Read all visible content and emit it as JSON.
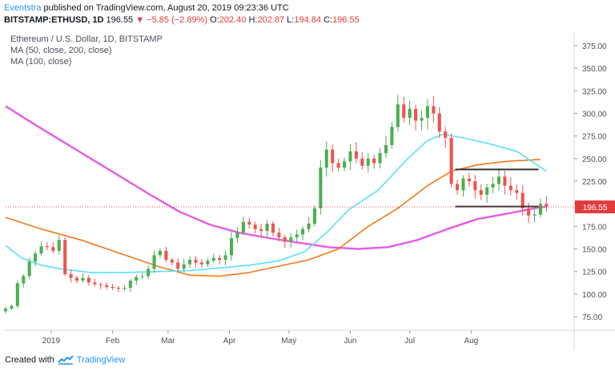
{
  "header": {
    "author": "Eventstra",
    "published": " published on TradingView.com, August 20, 2019 09:23:36 UTC",
    "symbol": "BITSTAMP:ETHUSD, 1D",
    "last": "196.55",
    "change": "▼ −5.85 (−2.89%)",
    "o_label": "O:",
    "o_value": "202.40",
    "h_label": "H:",
    "h_value": "202.87",
    "l_label": "L:",
    "l_value": "194.84",
    "c_label": "C:",
    "c_value": "196.55"
  },
  "footer": {
    "created_with": "Created with",
    "brand": "TradingView",
    "logo_icon": "tradingview-logo-icon"
  },
  "chart_data": {
    "type": "candlestick",
    "title": "Ethereum / U.S. Dollar, 1D, BITSTAMP",
    "legend": [
      "MA (50, close, 200, close)",
      "MA (100, close)"
    ],
    "y_ticks": [
      75,
      100,
      125,
      150,
      175,
      200,
      225,
      250,
      275,
      300,
      325,
      350,
      375
    ],
    "y_tick_labels": [
      "75.00",
      "100.00",
      "125.00",
      "150.00",
      "175.00",
      "200.00",
      "225.00",
      "250.00",
      "275.00",
      "300.00",
      "325.00",
      "350.00",
      "375.00"
    ],
    "ylim": [
      60,
      390
    ],
    "x_labels": [
      "2019",
      "Feb",
      "Mar",
      "Apr",
      "May",
      "Jun",
      "Jul",
      "Aug"
    ],
    "x_label_days": [
      0,
      31,
      59,
      90,
      120,
      151,
      181,
      212
    ],
    "xlim": [
      -23,
      264
    ],
    "last_price": 196.55,
    "last_price_label": "196.55",
    "price_color": "#e03c3c",
    "candles": [
      [
        -23,
        84
      ],
      [
        -20,
        87
      ],
      [
        -17,
        112
      ],
      [
        -14,
        120
      ],
      [
        -11,
        136
      ],
      [
        -8,
        145
      ],
      [
        -5,
        153
      ],
      [
        -2,
        152
      ],
      [
        1,
        148
      ],
      [
        4,
        160
      ],
      [
        7,
        122
      ],
      [
        10,
        118
      ],
      [
        13,
        115
      ],
      [
        16,
        118
      ],
      [
        19,
        113
      ],
      [
        22,
        111
      ],
      [
        25,
        110
      ],
      [
        28,
        108
      ],
      [
        31,
        107
      ],
      [
        34,
        106
      ],
      [
        37,
        107
      ],
      [
        40,
        115
      ],
      [
        43,
        119
      ],
      [
        46,
        120
      ],
      [
        49,
        128
      ],
      [
        52,
        143
      ],
      [
        55,
        148
      ],
      [
        58,
        138
      ],
      [
        61,
        135
      ],
      [
        64,
        128
      ],
      [
        67,
        133
      ],
      [
        70,
        138
      ],
      [
        73,
        135
      ],
      [
        76,
        133
      ],
      [
        79,
        137
      ],
      [
        82,
        140
      ],
      [
        85,
        138
      ],
      [
        88,
        143
      ],
      [
        91,
        162
      ],
      [
        94,
        168
      ],
      [
        97,
        180
      ],
      [
        100,
        177
      ],
      [
        103,
        172
      ],
      [
        106,
        170
      ],
      [
        109,
        178
      ],
      [
        112,
        168
      ],
      [
        115,
        163
      ],
      [
        118,
        158
      ],
      [
        121,
        163
      ],
      [
        124,
        166
      ],
      [
        127,
        172
      ],
      [
        130,
        178
      ],
      [
        133,
        195
      ],
      [
        136,
        240
      ],
      [
        139,
        260
      ],
      [
        142,
        245
      ],
      [
        145,
        240
      ],
      [
        148,
        247
      ],
      [
        151,
        258
      ],
      [
        154,
        250
      ],
      [
        157,
        242
      ],
      [
        160,
        250
      ],
      [
        163,
        245
      ],
      [
        166,
        256
      ],
      [
        169,
        265
      ],
      [
        172,
        285
      ],
      [
        175,
        310
      ],
      [
        178,
        295
      ],
      [
        181,
        305
      ],
      [
        184,
        292
      ],
      [
        187,
        295
      ],
      [
        190,
        308
      ],
      [
        193,
        300
      ],
      [
        196,
        280
      ],
      [
        199,
        273
      ],
      [
        202,
        222
      ],
      [
        205,
        215
      ],
      [
        208,
        228
      ],
      [
        211,
        225
      ],
      [
        214,
        215
      ],
      [
        217,
        210
      ],
      [
        220,
        218
      ],
      [
        223,
        222
      ],
      [
        226,
        230
      ],
      [
        229,
        220
      ],
      [
        232,
        215
      ],
      [
        235,
        212
      ],
      [
        238,
        195
      ],
      [
        241,
        187
      ],
      [
        244,
        188
      ],
      [
        247,
        200
      ],
      [
        250,
        197
      ]
    ],
    "candle_colors": {
      "up": "#4caf50",
      "down": "#ef5350"
    },
    "ma_cyan": {
      "name": "MA 50",
      "color": "#5ce0f7",
      "points": [
        [
          -23,
          154
        ],
        [
          -15,
          140
        ],
        [
          -5,
          132
        ],
        [
          5,
          128
        ],
        [
          20,
          124
        ],
        [
          35,
          124
        ],
        [
          55,
          125
        ],
        [
          70,
          126
        ],
        [
          85,
          129
        ],
        [
          100,
          132
        ],
        [
          115,
          137
        ],
        [
          128,
          147
        ],
        [
          140,
          170
        ],
        [
          150,
          193
        ],
        [
          165,
          215
        ],
        [
          180,
          250
        ],
        [
          190,
          270
        ],
        [
          198,
          277
        ],
        [
          210,
          272
        ],
        [
          222,
          266
        ],
        [
          235,
          258
        ],
        [
          250,
          236
        ]
      ]
    },
    "ma_orange": {
      "name": "MA 100",
      "color": "#f07a1e",
      "points": [
        [
          -23,
          185
        ],
        [
          -5,
          172
        ],
        [
          15,
          160
        ],
        [
          35,
          145
        ],
        [
          55,
          130
        ],
        [
          70,
          121
        ],
        [
          85,
          120
        ],
        [
          100,
          124
        ],
        [
          115,
          131
        ],
        [
          130,
          138
        ],
        [
          145,
          150
        ],
        [
          160,
          175
        ],
        [
          175,
          195
        ],
        [
          190,
          220
        ],
        [
          202,
          236
        ],
        [
          215,
          243
        ],
        [
          230,
          247
        ],
        [
          247,
          249
        ]
      ]
    },
    "ma_magenta": {
      "name": "MA 200",
      "color": "#e75ce6",
      "points": [
        [
          -23,
          308
        ],
        [
          -10,
          290
        ],
        [
          5,
          270
        ],
        [
          20,
          250
        ],
        [
          35,
          230
        ],
        [
          50,
          210
        ],
        [
          65,
          191
        ],
        [
          80,
          177
        ],
        [
          95,
          168
        ],
        [
          110,
          162
        ],
        [
          125,
          157
        ],
        [
          140,
          152
        ],
        [
          155,
          150
        ],
        [
          170,
          152
        ],
        [
          185,
          160
        ],
        [
          200,
          172
        ],
        [
          215,
          183
        ],
        [
          230,
          189
        ],
        [
          244,
          195
        ],
        [
          250,
          197
        ]
      ]
    },
    "box_top": {
      "from": 204,
      "to": 246,
      "value": 238
    },
    "box_bottom": {
      "from": 204,
      "to": 246,
      "value": 197
    },
    "box_color": "#333333"
  }
}
